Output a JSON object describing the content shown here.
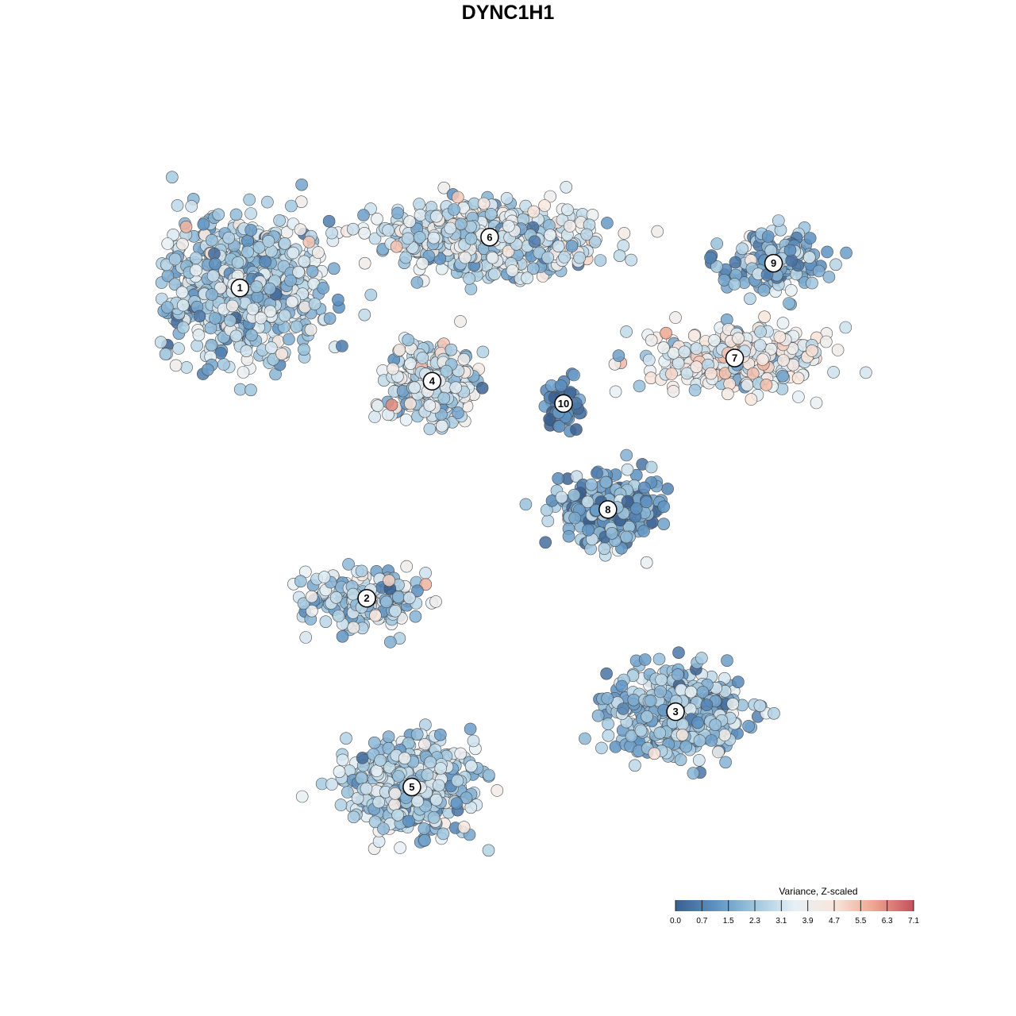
{
  "chart_data": {
    "type": "scatter",
    "title": "DYNC1H1",
    "xlabel": "",
    "ylabel": "",
    "x_range": [
      0,
      100
    ],
    "y_range": [
      0,
      100
    ],
    "grid": false,
    "axes_visible": false,
    "legend": {
      "title": "Variance, Z-scaled",
      "placement": "bottom-right",
      "min": 0.0,
      "max": 7.1,
      "ticks": [
        "0.0",
        "0.7",
        "1.5",
        "2.3",
        "3.1",
        "3.9",
        "4.7",
        "5.5",
        "6.3",
        "7.1"
      ],
      "colors": [
        "#3a5f8f",
        "#5d92c2",
        "#9fc6de",
        "#e6f0f5",
        "#f9e6dc",
        "#eda58f",
        "#c6505c"
      ]
    },
    "point_style": {
      "stroke": "#4d4d4d",
      "fill_opacity": 0.85
    },
    "clusters": [
      {
        "label": "1",
        "x": 13.5,
        "y": 79.5,
        "value_mean": 2.6
      },
      {
        "label": "2",
        "x": 29.8,
        "y": 37.9,
        "value_mean": 2.8
      },
      {
        "label": "3",
        "x": 69.5,
        "y": 22.7,
        "value_mean": 2.2
      },
      {
        "label": "4",
        "x": 38.2,
        "y": 67.0,
        "value_mean": 3.0
      },
      {
        "label": "5",
        "x": 35.6,
        "y": 12.6,
        "value_mean": 2.5
      },
      {
        "label": "6",
        "x": 45.6,
        "y": 86.3,
        "value_mean": 3.0
      },
      {
        "label": "7",
        "x": 77.1,
        "y": 70.1,
        "value_mean": 3.9
      },
      {
        "label": "8",
        "x": 60.8,
        "y": 49.8,
        "value_mean": 1.7
      },
      {
        "label": "9",
        "x": 82.1,
        "y": 82.8,
        "value_mean": 2.0
      },
      {
        "label": "10",
        "x": 55.1,
        "y": 64.0,
        "value_mean": 1.0
      }
    ]
  }
}
